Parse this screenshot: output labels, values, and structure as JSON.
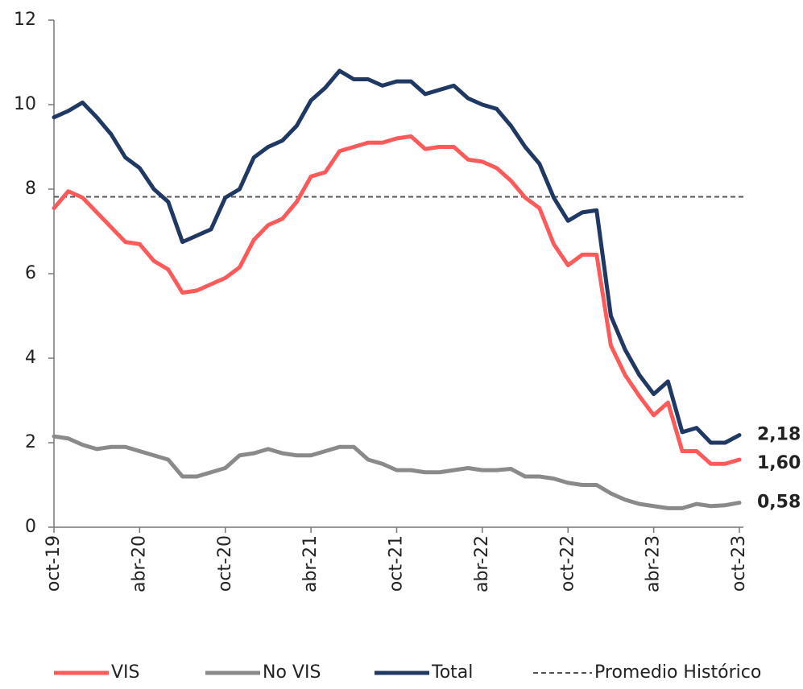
{
  "chart_data": {
    "type": "line",
    "categories": [
      "oct-19",
      null,
      null,
      null,
      null,
      null,
      "abr-20",
      null,
      null,
      null,
      null,
      null,
      "oct-20",
      null,
      null,
      null,
      null,
      null,
      "abr-21",
      null,
      null,
      null,
      null,
      null,
      "oct-21",
      null,
      null,
      null,
      null,
      null,
      "abr-22",
      null,
      null,
      null,
      null,
      null,
      "oct-22",
      null,
      null,
      null,
      null,
      null,
      "abr-23",
      null,
      null,
      null,
      null,
      null,
      "oct-23"
    ],
    "ylim": [
      0,
      12
    ],
    "yticks": [
      0,
      2,
      4,
      6,
      8,
      10,
      12
    ],
    "series": [
      {
        "name": "VIS",
        "color": "#ff5a5a",
        "label_color": "#c00000",
        "values": [
          7.55,
          7.95,
          7.8,
          7.45,
          7.1,
          6.75,
          6.7,
          6.3,
          6.1,
          5.55,
          5.6,
          5.75,
          5.9,
          6.15,
          6.8,
          7.15,
          7.3,
          7.7,
          8.3,
          8.4,
          8.9,
          9.0,
          9.1,
          9.1,
          9.2,
          9.25,
          8.95,
          9.0,
          9.0,
          8.7,
          8.65,
          8.5,
          8.2,
          7.8,
          7.55,
          6.7,
          6.2,
          6.45,
          6.45,
          4.3,
          3.6,
          3.1,
          2.65,
          2.95,
          1.8,
          1.8,
          1.5,
          1.5,
          1.6
        ],
        "value_labels": [
          null,
          null,
          null,
          null,
          null,
          null,
          null,
          null,
          null,
          null,
          null,
          null,
          null,
          null,
          null,
          null,
          null,
          null,
          null,
          null,
          null,
          null,
          null,
          null,
          null,
          null,
          null,
          null,
          null,
          null,
          null,
          null,
          null,
          null,
          null,
          null,
          null,
          null,
          null,
          null,
          null,
          null,
          null,
          null,
          null,
          null,
          null,
          null,
          "1,60"
        ]
      },
      {
        "name": "No VIS",
        "color": "#8a8a8a",
        "label_color": "#8a8a8a",
        "values": [
          2.15,
          2.1,
          1.95,
          1.85,
          1.9,
          1.9,
          1.8,
          1.7,
          1.6,
          1.2,
          1.2,
          1.3,
          1.4,
          1.7,
          1.75,
          1.85,
          1.75,
          1.7,
          1.7,
          1.8,
          1.9,
          1.9,
          1.6,
          1.5,
          1.35,
          1.35,
          1.3,
          1.3,
          1.35,
          1.4,
          1.35,
          1.35,
          1.38,
          1.2,
          1.2,
          1.15,
          1.05,
          1.0,
          1.0,
          0.8,
          0.65,
          0.55,
          0.5,
          0.45,
          0.45,
          0.55,
          0.5,
          0.52,
          0.58
        ],
        "value_labels": [
          null,
          null,
          null,
          null,
          null,
          null,
          null,
          null,
          null,
          null,
          null,
          null,
          null,
          null,
          null,
          null,
          null,
          null,
          null,
          null,
          null,
          null,
          null,
          null,
          null,
          null,
          null,
          null,
          null,
          null,
          null,
          null,
          null,
          null,
          null,
          null,
          null,
          null,
          null,
          null,
          null,
          null,
          null,
          null,
          null,
          null,
          null,
          null,
          "0,58"
        ]
      },
      {
        "name": "Total",
        "color": "#1f3864",
        "label_color": "#1f3864",
        "values": [
          9.7,
          9.85,
          10.05,
          9.7,
          9.3,
          8.75,
          8.5,
          8.0,
          7.7,
          6.75,
          6.9,
          7.05,
          7.8,
          8.0,
          8.75,
          9.0,
          9.15,
          9.5,
          10.1,
          10.4,
          10.8,
          10.6,
          10.6,
          10.45,
          10.55,
          10.55,
          10.25,
          10.35,
          10.45,
          10.15,
          10.0,
          9.9,
          9.5,
          9.0,
          8.6,
          7.8,
          7.25,
          7.45,
          7.5,
          5.0,
          4.2,
          3.6,
          3.15,
          3.45,
          2.25,
          2.35,
          2.0,
          2.0,
          2.18
        ],
        "value_labels": [
          null,
          null,
          null,
          null,
          null,
          null,
          null,
          null,
          null,
          null,
          null,
          null,
          null,
          null,
          null,
          null,
          null,
          null,
          null,
          null,
          null,
          null,
          null,
          null,
          null,
          null,
          null,
          null,
          null,
          null,
          null,
          null,
          null,
          null,
          null,
          null,
          null,
          null,
          null,
          null,
          null,
          null,
          null,
          null,
          null,
          null,
          null,
          null,
          "2,18"
        ]
      }
    ],
    "reference_line": {
      "name": "Promedio Histórico",
      "value": 7.82,
      "color": "#555555"
    }
  }
}
